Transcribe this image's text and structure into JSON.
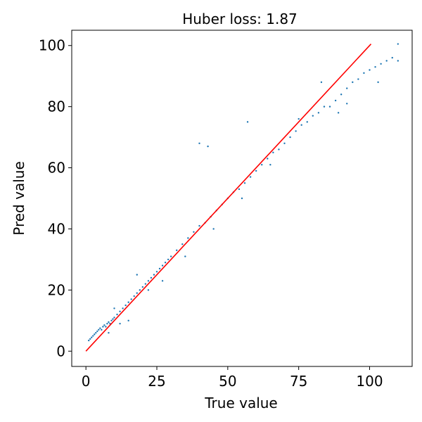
{
  "chart_data": {
    "type": "scatter",
    "title": "Huber loss: 1.87",
    "xlabel": "True value",
    "ylabel": "Pred value",
    "xlim": [
      -5,
      115
    ],
    "ylim": [
      -5,
      105
    ],
    "xticks": [
      0,
      25,
      50,
      75,
      100
    ],
    "yticks": [
      0,
      20,
      40,
      60,
      80,
      100
    ],
    "x_tick_labels": [
      "0",
      "25",
      "50",
      "75",
      "100"
    ],
    "y_tick_labels": [
      "0",
      "20",
      "40",
      "60",
      "80",
      "100"
    ],
    "grid": false,
    "series": [
      {
        "kind": "scatter",
        "color": "#1f77b4",
        "x": [
          1.0,
          1.5,
          2.0,
          2.5,
          3.0,
          3.5,
          4.0,
          4.5,
          5.0,
          5.5,
          6.0,
          6.5,
          7.0,
          7.5,
          8.0,
          8.5,
          9.0,
          9.5,
          10.0,
          11.0,
          12.0,
          13.0,
          14.0,
          15.0,
          16.0,
          17.0,
          18.0,
          19.0,
          20.0,
          21.0,
          22.0,
          23.0,
          24.0,
          25.0,
          26.0,
          27.0,
          28.0,
          29.0,
          30.0,
          32.0,
          34.0,
          36.0,
          38.0,
          40.0,
          42.0,
          44.0,
          46.0,
          48.0,
          50.0,
          52.0,
          54.0,
          56.0,
          58.0,
          60.0,
          62.0,
          64.0,
          66.0,
          68.0,
          70.0,
          72.0,
          74.0,
          76.0,
          78.0,
          80.0,
          82.0,
          84.0,
          86.0,
          88.0,
          90.0,
          92.0,
          94.0,
          96.0,
          98.0,
          100.0,
          102.0,
          104.0,
          106.0,
          108.0,
          110.0,
          40.0,
          43.0,
          57.0,
          75.0,
          89.0,
          110.0,
          12.0,
          10.0,
          8.0,
          15.0,
          18.0,
          22.0,
          27.0,
          35.0,
          45.0,
          55.0,
          65.0,
          83.0,
          92.0,
          103.0
        ],
        "y": [
          3.5,
          4.0,
          4.5,
          5.0,
          5.5,
          6.0,
          6.5,
          7.0,
          7.5,
          7.0,
          8.0,
          8.5,
          8.0,
          9.0,
          9.5,
          9.0,
          10.0,
          10.5,
          11.0,
          12.0,
          13.0,
          14.0,
          15.0,
          16.0,
          17.0,
          18.0,
          19.0,
          20.0,
          21.0,
          22.0,
          23.0,
          24.0,
          25.0,
          26.0,
          27.0,
          28.0,
          29.0,
          30.0,
          31.0,
          33.0,
          35.0,
          37.0,
          39.0,
          41.0,
          42.0,
          44.0,
          46.0,
          48.0,
          50.0,
          52.0,
          53.0,
          55.0,
          57.0,
          59.0,
          61.0,
          63.0,
          65.0,
          66.0,
          68.0,
          70.0,
          72.0,
          74.0,
          75.0,
          77.0,
          78.0,
          80.0,
          80.0,
          82.0,
          84.0,
          86.0,
          88.0,
          89.0,
          91.0,
          92.0,
          93.0,
          94.0,
          95.0,
          96.0,
          95.0,
          68.0,
          67.0,
          75.0,
          76.0,
          78.0,
          100.5,
          9.0,
          14.0,
          6.0,
          10.0,
          25.0,
          20.0,
          23.0,
          31.0,
          40.0,
          50.0,
          61.0,
          88.0,
          81.0,
          88.0
        ]
      },
      {
        "kind": "line",
        "color": "#ff0000",
        "x": [
          0,
          100.5
        ],
        "y": [
          0,
          100.5
        ]
      }
    ]
  }
}
